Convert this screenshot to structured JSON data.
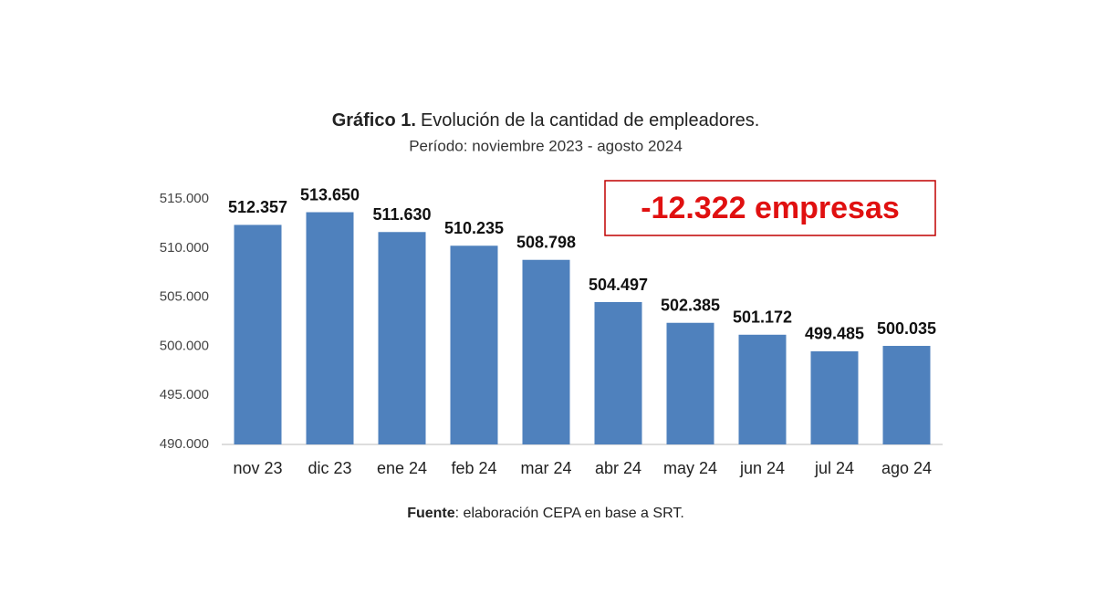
{
  "chart_data": {
    "type": "bar",
    "title_number": "Gráfico 1.",
    "title": "Evolución de la cantidad de empleadores.",
    "subtitle": "Período: noviembre 2023 - agosto 2024",
    "annotation": "-12.322 empresas",
    "source_label": "Fuente",
    "source": ": elaboración CEPA en base a SRT.",
    "categories": [
      "nov 23",
      "dic 23",
      "ene 24",
      "feb 24",
      "mar 24",
      "abr 24",
      "may 24",
      "jun 24",
      "jul 24",
      "ago 24"
    ],
    "values": [
      512357,
      513650,
      511630,
      510235,
      508798,
      504497,
      502385,
      501172,
      499485,
      500035
    ],
    "value_labels": [
      "512.357",
      "513.650",
      "511.630",
      "510.235",
      "508.798",
      "504.497",
      "502.385",
      "501.172",
      "499.485",
      "500.035"
    ],
    "color": "#4f81bd",
    "ylim": [
      490000,
      515000
    ],
    "yticks": [
      {
        "value": 490000,
        "label": "490.000"
      },
      {
        "value": 495000,
        "label": "495.000"
      },
      {
        "value": 500000,
        "label": "500.000"
      },
      {
        "value": 505000,
        "label": "505.000"
      },
      {
        "value": 510000,
        "label": "510.000"
      },
      {
        "value": 515000,
        "label": "515.000"
      }
    ],
    "grid": false
  }
}
